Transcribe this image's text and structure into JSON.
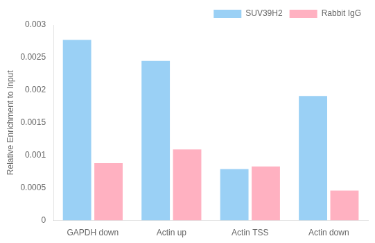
{
  "chart_data": {
    "type": "bar",
    "categories": [
      "GAPDH down",
      "Actin up",
      "Actin TSS",
      "Actin down"
    ],
    "series": [
      {
        "name": "SUV39H2",
        "values": [
          0.00277,
          0.00245,
          0.00079,
          0.00191
        ]
      },
      {
        "name": "Rabbit IgG",
        "values": [
          0.00088,
          0.00109,
          0.00083,
          0.00046
        ]
      }
    ],
    "ylabel": "Relative Enrichment to Input",
    "ylim": [
      0,
      0.003
    ],
    "yticks": [
      0,
      0.0005,
      0.001,
      0.0015,
      0.002,
      0.0025,
      0.003
    ],
    "grid": false,
    "legend": "upper right"
  }
}
